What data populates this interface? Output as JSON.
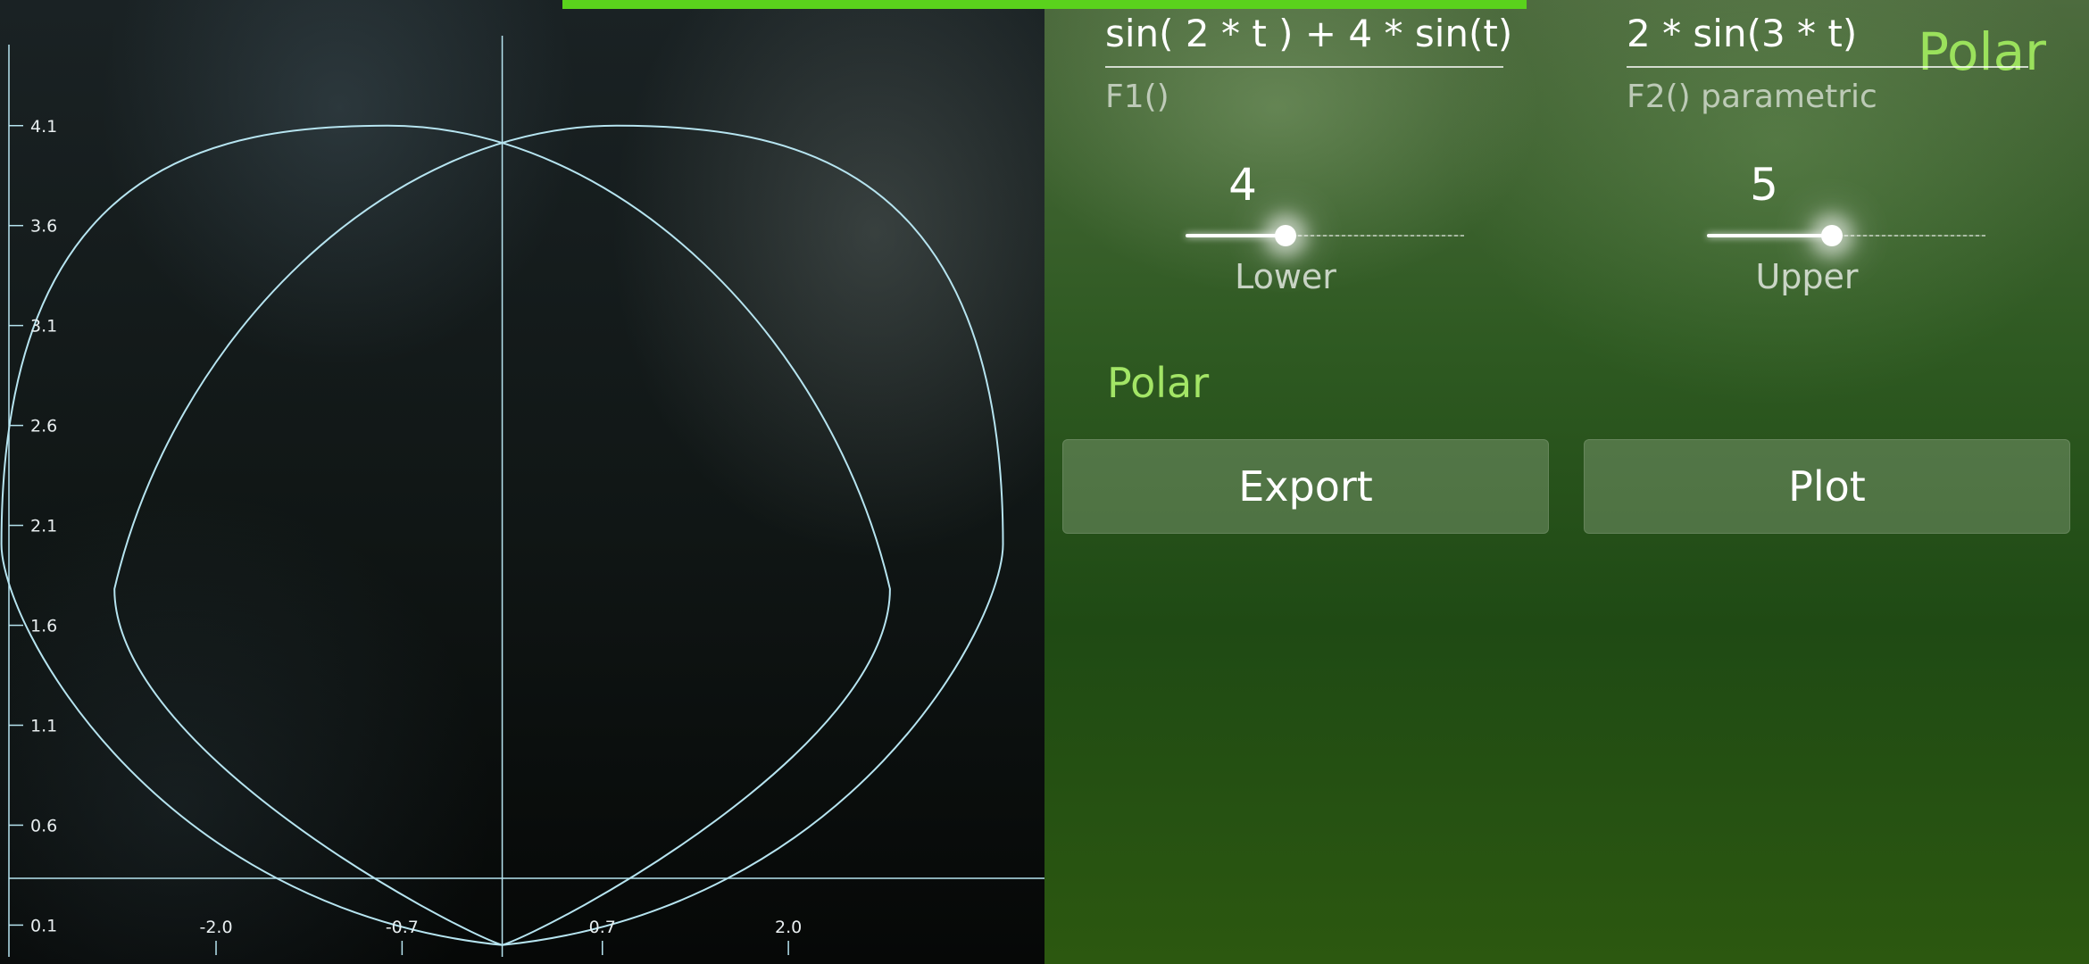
{
  "status": {
    "progress_color": "#5ad21c"
  },
  "header": {
    "title": "Polar"
  },
  "functions": {
    "f1": {
      "value": "sin( 2 * t ) + 4 * sin(t)",
      "label": "F1()"
    },
    "f2": {
      "value": "2 * sin(3 * t)",
      "label": "F2() parametric"
    }
  },
  "sliders": {
    "lower": {
      "value": "4",
      "label": "Lower",
      "position_fraction": 0.36
    },
    "upper": {
      "value": "5",
      "label": "Upper",
      "position_fraction": 0.45
    }
  },
  "mode": {
    "label": "Polar"
  },
  "buttons": {
    "export_label": "Export",
    "plot_label": "Plot"
  },
  "icons": {
    "slider_knob": "slider-knob-glow"
  },
  "chart_data": {
    "type": "line",
    "title": "",
    "xlabel": "",
    "ylabel": "",
    "x_ticks": [
      "-2.0",
      "-0.7",
      "0.7",
      "2.0"
    ],
    "y_ticks": [
      "0.1",
      "0.6",
      "1.1",
      "1.6",
      "2.1",
      "2.6",
      "3.1",
      "3.6",
      "4.1"
    ],
    "xlim": [
      -3.51,
      3.79
    ],
    "ylim": [
      -0.05,
      4.55
    ],
    "grid": false,
    "legend": "none",
    "series_color": "#b6e4f0",
    "series": [
      {
        "name": "",
        "x": [
          0.0,
          0.5,
          1.3,
          2.1,
          2.8,
          3.3,
          3.5,
          3.3,
          2.8,
          1.9,
          1.0,
          0.0,
          -1.0,
          -1.9,
          -2.8,
          -3.3,
          -3.5,
          -3.3,
          -2.8,
          -2.1,
          -1.3,
          -0.5,
          0.0
        ],
        "y": [
          0.0,
          0.05,
          0.3,
          0.75,
          1.4,
          2.05,
          2.6,
          3.1,
          3.55,
          3.95,
          4.15,
          3.95,
          4.15,
          3.95,
          3.55,
          3.1,
          2.6,
          2.05,
          1.4,
          0.75,
          0.3,
          0.05,
          0.0
        ]
      }
    ]
  }
}
